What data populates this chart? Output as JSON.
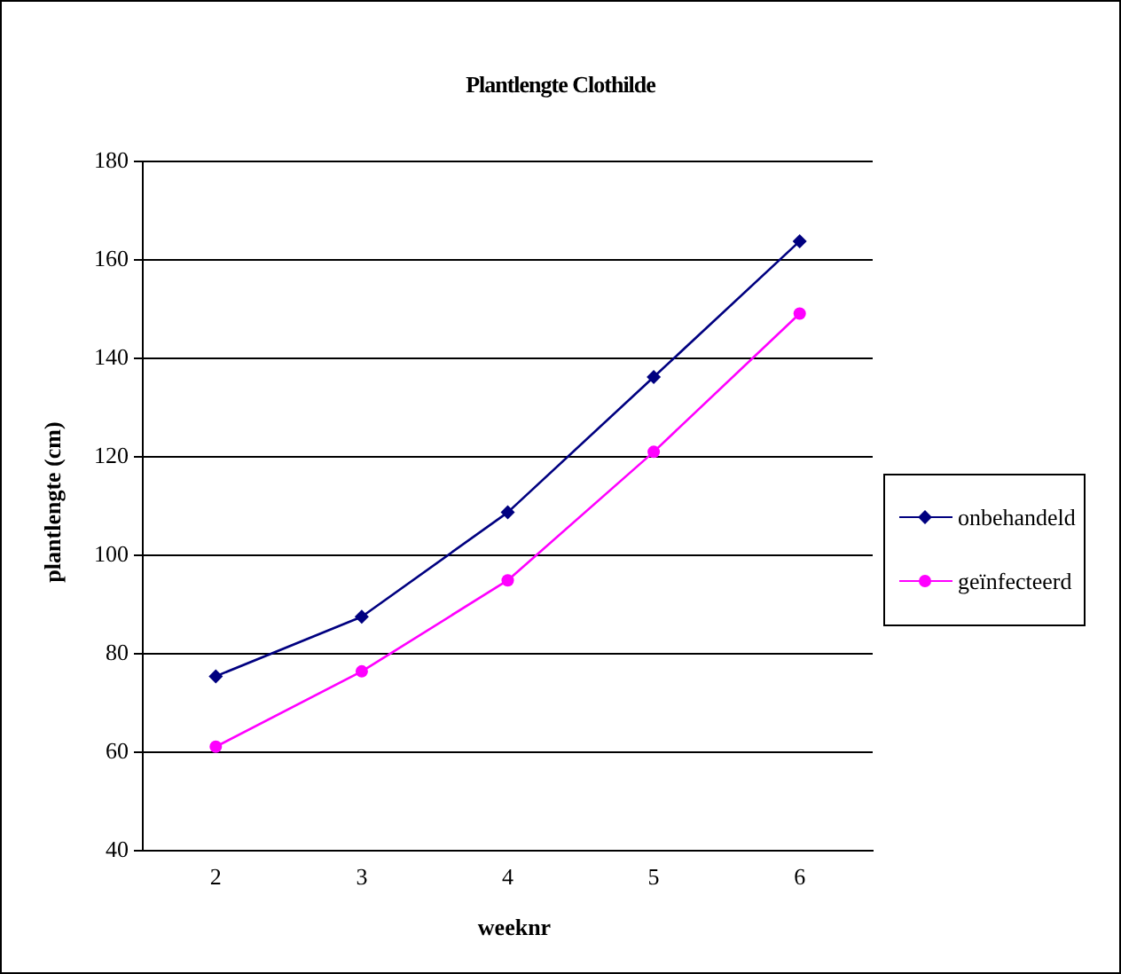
{
  "chart_data": {
    "type": "line",
    "title": "Plantlengte Clothilde",
    "xlabel": "weeknr",
    "ylabel": "plantlengte (cm)",
    "categories": [
      "2",
      "3",
      "4",
      "5",
      "6"
    ],
    "series": [
      {
        "name": "onbehandeld",
        "color": "#000080",
        "marker": "diamond",
        "values": [
          75.4,
          87.5,
          108.7,
          136.2,
          163.8
        ]
      },
      {
        "name": "geïnfecteerd",
        "color": "#ff00ff",
        "marker": "circle",
        "values": [
          61.1,
          76.4,
          94.9,
          121,
          149.1
        ]
      }
    ],
    "ylim": [
      40,
      180
    ],
    "yticks": [
      40,
      60,
      80,
      100,
      120,
      140,
      160,
      180
    ],
    "grid": "y",
    "legend": "right",
    "line_style": "solid"
  }
}
